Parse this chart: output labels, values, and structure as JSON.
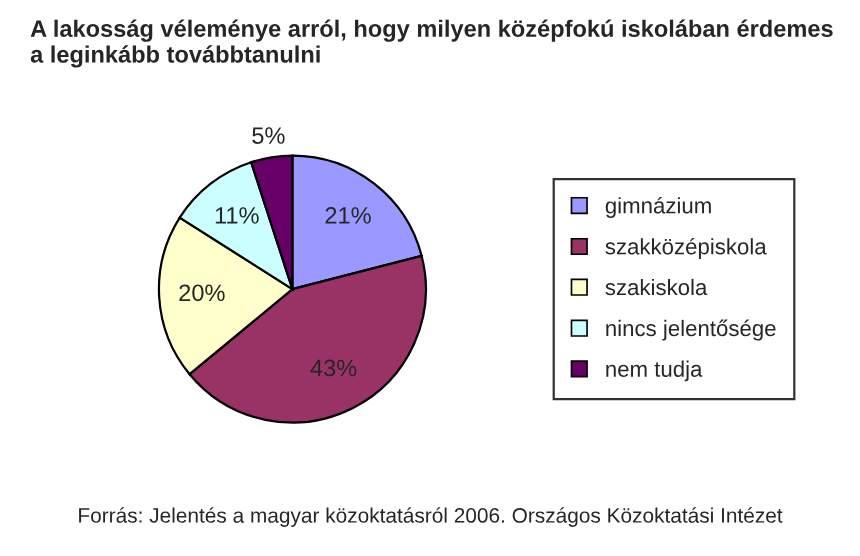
{
  "chart_data": {
    "type": "pie",
    "title": "A lakosság véleménye arról, hogy milyen középfokú iskolában érdemes\na leginkább továbbtanulni",
    "categories": [
      "gimnázium",
      "szakközépiskola",
      "szakiskola",
      "nincs jelentősége",
      "nem tudja"
    ],
    "values": [
      21,
      43,
      20,
      11,
      5
    ],
    "value_labels": [
      "21%",
      "43%",
      "20%",
      "11%",
      "5%"
    ],
    "colors": [
      "#9999ff",
      "#993366",
      "#ffffcc",
      "#ccffff",
      "#660066"
    ],
    "legend": "right",
    "annotations": [
      "Forrás: Jelentés a magyar közoktatásról 2006. Országos Közoktatási Intézet"
    ]
  }
}
